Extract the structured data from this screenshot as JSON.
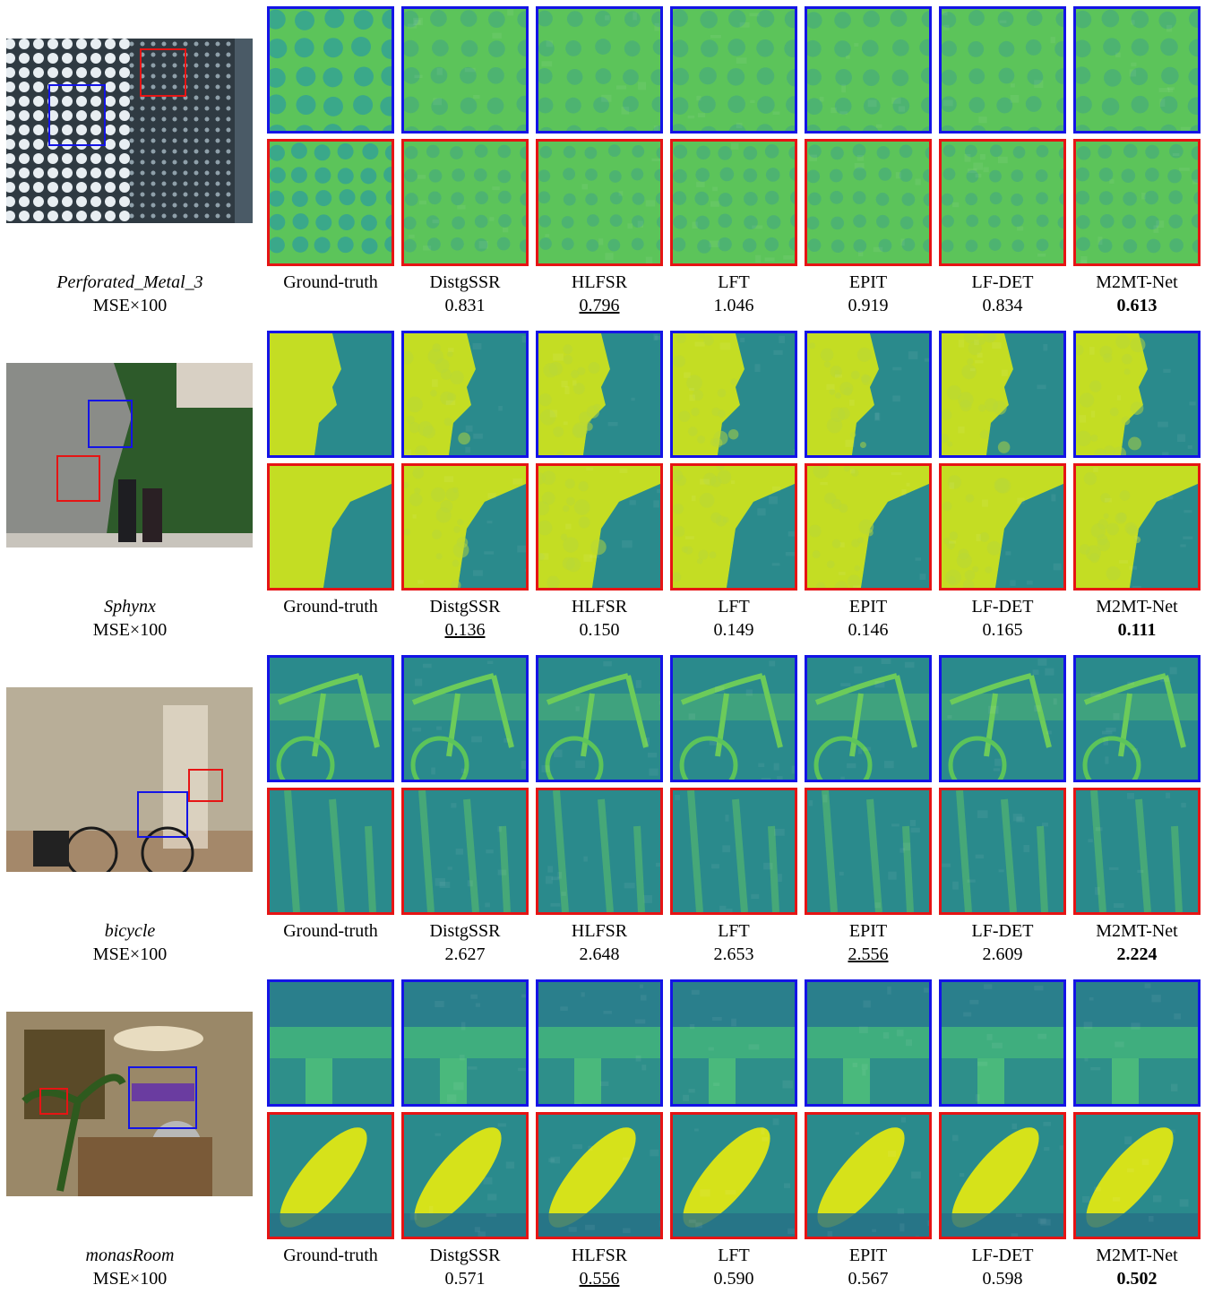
{
  "methods": [
    "Ground-truth",
    "DistgSSR",
    "HLFSR",
    "LFT",
    "EPIT",
    "LF-DET",
    "M2MT-Net"
  ],
  "metric_label": "MSE×100",
  "rows": [
    {
      "scene": "Perforated_Metal_3",
      "values": [
        "",
        "0.831",
        "0.796",
        "1.046",
        "0.919",
        "0.834",
        "0.613"
      ],
      "best_index": 6,
      "second_index": 2,
      "pattern": "dots"
    },
    {
      "scene": "Sphynx",
      "values": [
        "",
        "0.136",
        "0.150",
        "0.149",
        "0.146",
        "0.165",
        "0.111"
      ],
      "best_index": 6,
      "second_index": 1,
      "pattern": "face"
    },
    {
      "scene": "bicycle",
      "values": [
        "",
        "2.627",
        "2.648",
        "2.653",
        "2.556",
        "2.609",
        "2.224"
      ],
      "best_index": 6,
      "second_index": 4,
      "pattern": "bike"
    },
    {
      "scene": "monasRoom",
      "values": [
        "",
        "0.571",
        "0.556",
        "0.590",
        "0.567",
        "0.598",
        "0.502"
      ],
      "best_index": 6,
      "second_index": 2,
      "pattern": "room"
    }
  ],
  "colors": {
    "box_blue": "#1414e6",
    "box_red": "#e61414",
    "map_low": "#2a8a8c",
    "map_mid": "#5cc45a",
    "map_high": "#d6e21a"
  }
}
